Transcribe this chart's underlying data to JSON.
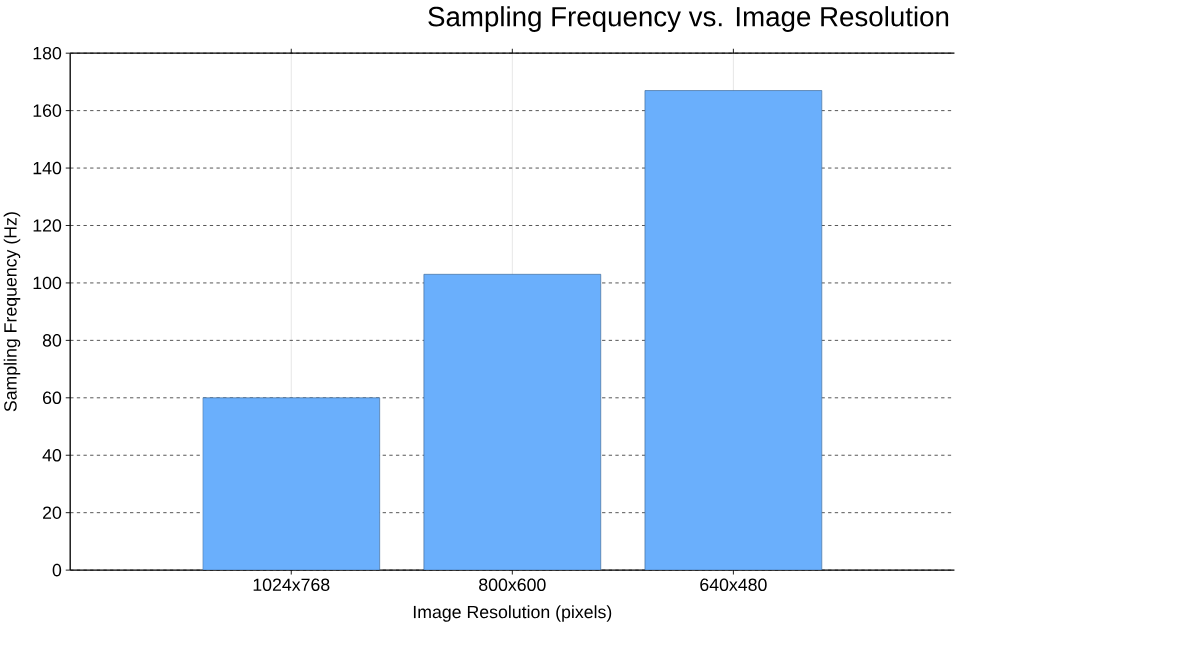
{
  "chart_data": {
    "type": "bar",
    "title": "Sampling Frequency vs. Image Resolution",
    "xlabel": "Image Resolution (pixels)",
    "ylabel": "Sampling Frequency (Hz)",
    "categories": [
      "1024x768",
      "800x600",
      "640x480"
    ],
    "values": [
      60,
      103,
      167
    ],
    "color": "#6aaffc",
    "ylim": [
      0,
      180
    ],
    "yticks": [
      0,
      20,
      40,
      60,
      80,
      100,
      120,
      140,
      160,
      180
    ],
    "grid": true
  }
}
